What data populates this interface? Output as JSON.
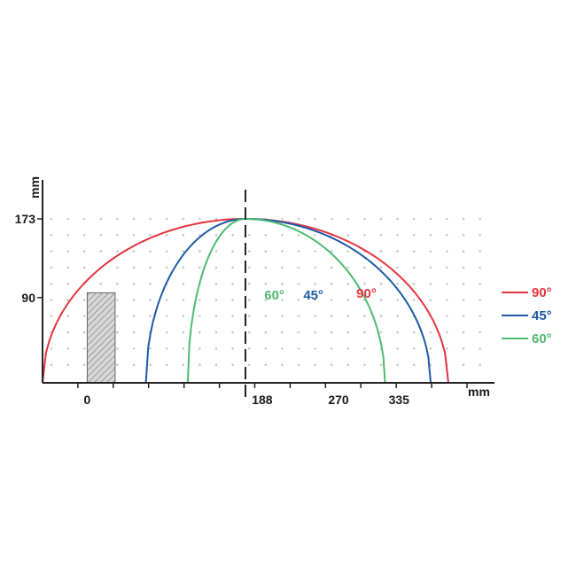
{
  "chart_data": {
    "type": "line",
    "xlabel": "mm",
    "ylabel": "mm",
    "x_ticks": [
      {
        "value": 0,
        "label": "0"
      },
      {
        "value": 188,
        "label": "188"
      },
      {
        "value": 270,
        "label": "270"
      },
      {
        "value": 335,
        "label": "335"
      }
    ],
    "y_ticks": [
      {
        "value": 90,
        "label": "90"
      },
      {
        "value": 173,
        "label": "173"
      }
    ],
    "xlim": [
      -48,
      428
    ],
    "ylim": [
      0,
      173
    ],
    "center_x": 170,
    "grid": "dotted",
    "obstacle": {
      "x0": 0,
      "x1": 30,
      "y0": 0,
      "y1": 95
    },
    "series": [
      {
        "name": "90°",
        "color": "#e3343f",
        "label": "90°",
        "x_start": -48,
        "x_end": 388,
        "peak": 173
      },
      {
        "name": "45°",
        "color": "#1d5aa5",
        "label": "45°",
        "x_start": 63,
        "x_end": 369,
        "peak": 173
      },
      {
        "name": "60°",
        "color": "#4dba6e",
        "label": "60°",
        "x_start": 108,
        "x_end": 320,
        "peak": 173
      }
    ],
    "legend": {
      "placement": "right",
      "entries": [
        "90°",
        "45°",
        "60°"
      ]
    }
  }
}
